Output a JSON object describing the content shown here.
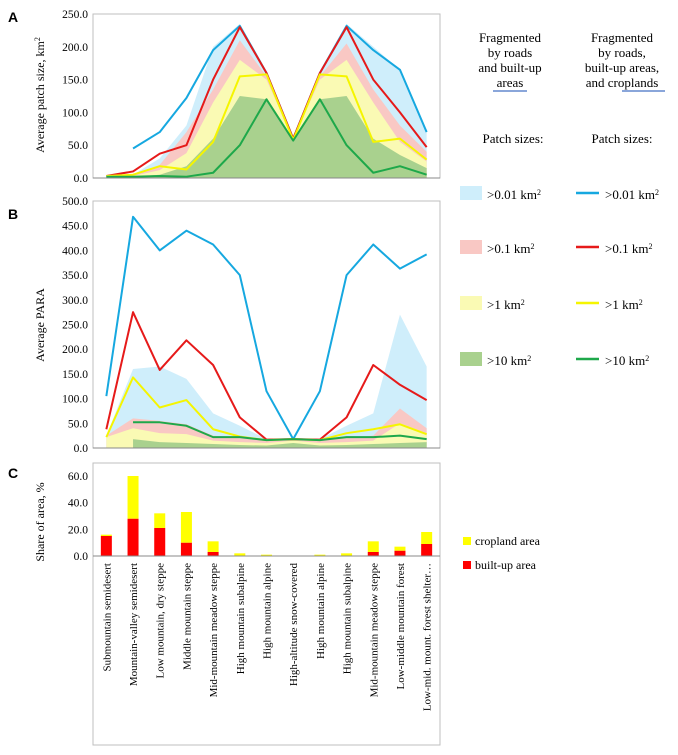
{
  "panel_letters": {
    "a": "A",
    "b": "B",
    "c": "C"
  },
  "legend": {
    "col1_header": [
      "Fragmented",
      "by roads",
      "and built-up",
      "areas"
    ],
    "col2_header": [
      "Fragmented",
      "by roads,",
      "built-up areas,",
      "and croplands"
    ],
    "patch_sizes_label": "Patch sizes:",
    "entries": [
      {
        "label": ">0.01 km",
        "sup": "2",
        "fill": "#cfeefb",
        "line": "#16a8e0"
      },
      {
        "label": ">0.1 km",
        "sup": "2",
        "fill": "#f9c8c4",
        "line": "#e61a1a"
      },
      {
        "label": ">1 km",
        "sup": "2",
        "fill": "#fafab4",
        "line": "#f5f500"
      },
      {
        "label": ">10 km",
        "sup": "2",
        "fill": "#a9d18e",
        "line": "#1ea84a"
      }
    ],
    "bars": [
      {
        "label": "cropland area",
        "color": "#ffff00"
      },
      {
        "label": "built-up area",
        "color": "#ff0000"
      }
    ]
  },
  "chart_data": [
    {
      "type": "area",
      "panel": "A",
      "ylabel_text": "Average patch size, km",
      "ylabel_sup": "2",
      "ylim": [
        0,
        250
      ],
      "yticks": [
        "0.0",
        "50.0",
        "100.0",
        "150.0",
        "200.0",
        "250.0"
      ],
      "x_start": 0,
      "area_series": [
        {
          "name": ">0.01 km2",
          "color": "#cfeefb",
          "values": [
            3,
            5,
            30,
            80,
            200,
            235,
            160,
            60,
            160,
            235,
            200,
            165,
            70
          ]
        },
        {
          "name": ">0.1 km2",
          "color": "#f9c8c4",
          "values": [
            2,
            5,
            20,
            70,
            135,
            210,
            155,
            60,
            155,
            205,
            135,
            80,
            40
          ]
        },
        {
          "name": ">1 km2",
          "color": "#fafab4",
          "values": [
            1,
            3,
            12,
            38,
            115,
            180,
            150,
            58,
            150,
            180,
            115,
            55,
            25
          ]
        },
        {
          "name": ">10 km2",
          "color": "#a9d18e",
          "values": [
            1,
            2,
            5,
            18,
            60,
            125,
            120,
            57,
            120,
            125,
            60,
            35,
            15
          ]
        }
      ],
      "line_series": [
        {
          "name": ">0.01 km2",
          "color": "#16a8e0",
          "values": [
            null,
            45,
            70,
            122,
            195,
            232,
            160,
            60,
            160,
            232,
            195,
            165,
            70
          ]
        },
        {
          "name": ">0.1 km2",
          "color": "#e61a1a",
          "values": [
            3,
            10,
            37,
            50,
            150,
            230,
            160,
            60,
            160,
            230,
            150,
            100,
            47
          ]
        },
        {
          "name": ">1 km2",
          "color": "#f5f500",
          "values": [
            3,
            5,
            18,
            13,
            55,
            155,
            158,
            58,
            158,
            155,
            55,
            60,
            28
          ]
        },
        {
          "name": ">10 km2",
          "color": "#1ea84a",
          "values": [
            2,
            2,
            3,
            2,
            8,
            50,
            120,
            57,
            120,
            50,
            8,
            18,
            5
          ]
        }
      ]
    },
    {
      "type": "area",
      "panel": "B",
      "ylabel_text": "Average PARA",
      "ylim": [
        0,
        500
      ],
      "yticks": [
        "0.0",
        "50.0",
        "100.0",
        "150.0",
        "200.0",
        "250.0",
        "300.0",
        "350.0",
        "400.0",
        "450.0",
        "500.0"
      ],
      "area_series": [
        {
          "name": ">0.01 km2",
          "color": "#cfeefb",
          "values": [
            25,
            160,
            165,
            140,
            70,
            45,
            18,
            18,
            18,
            45,
            70,
            270,
            165
          ]
        },
        {
          "name": ">0.1 km2",
          "color": "#f9c8c4",
          "values": [
            25,
            60,
            55,
            48,
            25,
            20,
            16,
            18,
            16,
            20,
            25,
            80,
            40
          ]
        },
        {
          "name": ">1 km2",
          "color": "#fafab4",
          "values": [
            22,
            40,
            30,
            28,
            15,
            12,
            10,
            15,
            10,
            12,
            15,
            50,
            30
          ]
        },
        {
          "name": ">10 km2",
          "color": "#a9d18e",
          "values": [
            null,
            18,
            12,
            10,
            8,
            6,
            5,
            10,
            5,
            6,
            8,
            10,
            12
          ]
        }
      ],
      "line_series": [
        {
          "name": ">0.01 km2",
          "color": "#16a8e0",
          "values": [
            105,
            468,
            400,
            440,
            412,
            350,
            115,
            18,
            115,
            350,
            412,
            363,
            392
          ]
        },
        {
          "name": ">0.1 km2",
          "color": "#e61a1a",
          "values": [
            38,
            275,
            158,
            218,
            168,
            62,
            17,
            18,
            17,
            62,
            168,
            128,
            97
          ]
        },
        {
          "name": ">1 km2",
          "color": "#f5f500",
          "values": [
            22,
            143,
            82,
            97,
            38,
            23,
            16,
            18,
            16,
            30,
            38,
            48,
            28
          ]
        },
        {
          "name": ">10 km2",
          "color": "#1ea84a",
          "values": [
            null,
            52,
            52,
            45,
            22,
            22,
            16,
            18,
            16,
            22,
            22,
            25,
            18
          ]
        }
      ]
    },
    {
      "type": "bar",
      "panel": "C",
      "ylabel_text": "Share of area, %",
      "ylim": [
        0,
        60
      ],
      "yticks": [
        "0.0",
        "20.0",
        "40.0",
        "60.0"
      ],
      "categories": [
        "Submountain semidesert",
        "Mountain-valley semidesert",
        "Low mountain, dry steppe",
        "Middle mountain steppe",
        "Mid-mountain meadow steppe",
        "High mountain subalpine",
        "High mountain alpine",
        "High-altitude snow-covered",
        "High mountain alpine",
        "High mountain subalpine",
        "Mid-mountain meadow steppe",
        "Low-middle mountain forest",
        "Low-mid. mount. forest shelter…"
      ],
      "series": [
        {
          "name": "built-up area",
          "color": "#ff0000",
          "values": [
            15,
            28,
            21,
            10,
            3,
            0,
            0,
            0,
            0,
            0,
            3,
            4,
            9
          ]
        },
        {
          "name": "cropland area",
          "color": "#ffff00",
          "values": [
            1,
            32,
            11,
            23,
            8,
            2,
            1,
            0,
            1,
            2,
            8,
            3,
            9
          ]
        }
      ]
    }
  ]
}
